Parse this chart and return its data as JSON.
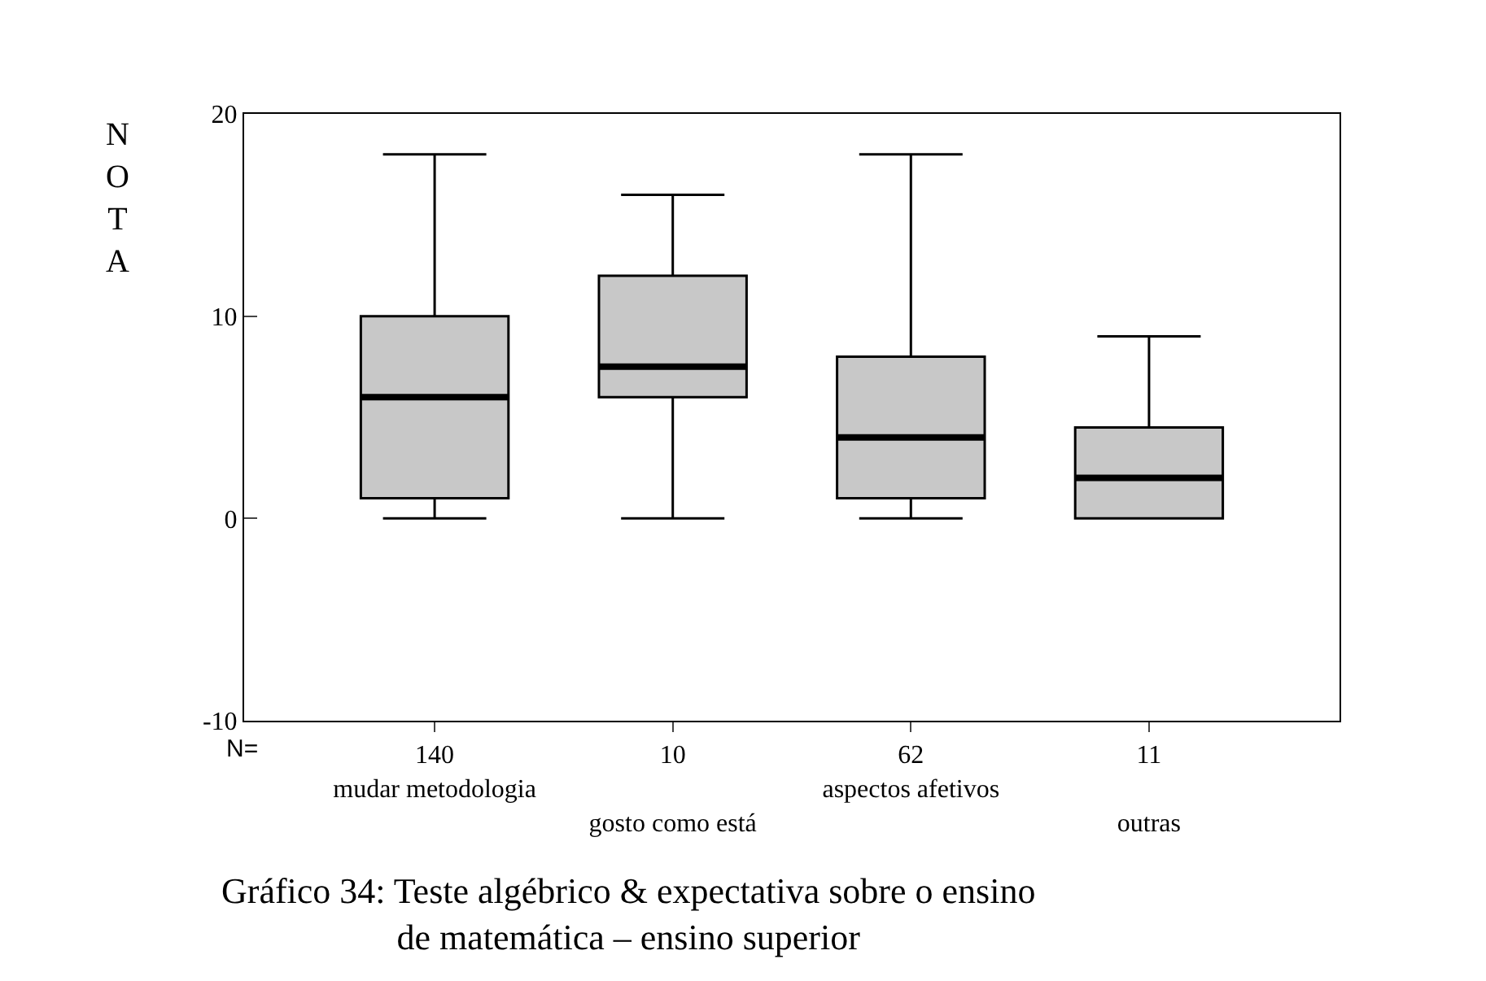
{
  "chart_data": {
    "type": "box",
    "title": "Gráfico 34: Teste algébrico & expectativa sobre o ensino\nde matemática – ensino superior",
    "ylabel": "NOTA",
    "categories": [
      "140\nmudar metodologia",
      "10\ngosto como está",
      "62\naspectos afetivos",
      "11\noutras"
    ],
    "boxes": [
      {
        "low": 0,
        "q1": 1,
        "median": 6,
        "q3": 10,
        "high": 18
      },
      {
        "low": 0,
        "q1": 6,
        "median": 7.5,
        "q3": 12,
        "high": 16
      },
      {
        "low": 0,
        "q1": 1,
        "median": 4,
        "q3": 8,
        "high": 18
      },
      {
        "low": 0,
        "q1": 0,
        "median": 2,
        "q3": 4.5,
        "high": 9
      }
    ],
    "color": "#c8c8c8",
    "ylim": [
      -10,
      20
    ],
    "yticks": [
      -10,
      0,
      10,
      20
    ],
    "legend": false,
    "annotations": [
      "N="
    ]
  }
}
